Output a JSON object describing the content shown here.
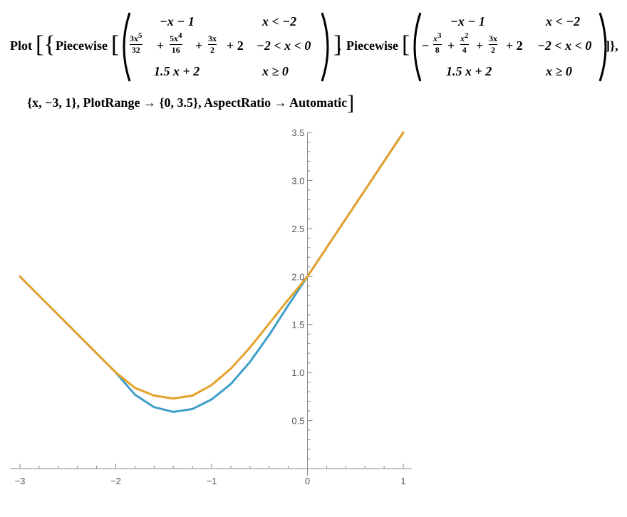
{
  "input": {
    "plot_open": "Plot",
    "piecewise_label": "Piecewise",
    "left_top_expr": "−x − 1",
    "left_top_cond": "x < −2",
    "f1_t1_num": "3x",
    "f1_t1_sup": "5",
    "f1_t1_den": "32",
    "f1_t2_num": "5x",
    "f1_t2_sup": "4",
    "f1_t2_den": "16",
    "f1_t3_num": "3x",
    "f1_t3_den": "2",
    "plus": "+",
    "plus2": "+ 2",
    "mid_cond": "−2 < x < 0",
    "bottom_expr": "1.5 x + 2",
    "bottom_cond": "x ≥ 0",
    "minus": "−",
    "f2_t1_num": "x",
    "f2_t1_sup": "3",
    "f2_t1_den": "8",
    "f2_t2_num": "x",
    "f2_t2_sup": "2",
    "f2_t2_den": "4",
    "f2_t3_num": "3x",
    "f2_t3_den": "2",
    "comma_close": "]},",
    "line2_text": "{x, −3, 1}, PlotRange → {0, 3.5}, AspectRatio → Automatic"
  },
  "chart_data": {
    "type": "line",
    "title": "",
    "xlabel": "",
    "ylabel": "",
    "xlim": [
      -3,
      1
    ],
    "ylim": [
      0,
      3.5
    ],
    "x_ticks": [
      "−3",
      "−2",
      "−1",
      "0",
      "1"
    ],
    "y_ticks": [
      "0.5",
      "1.0",
      "1.5",
      "2.0",
      "2.5",
      "3.0",
      "3.5"
    ],
    "series": [
      {
        "color": "#3f9ec9",
        "points": [
          [
            -3,
            2.0
          ],
          [
            -2.75,
            1.75
          ],
          [
            -2.5,
            1.5
          ],
          [
            -2.25,
            1.25
          ],
          [
            -2.0,
            1.0
          ],
          [
            -1.8,
            0.77
          ],
          [
            -1.6,
            0.64
          ],
          [
            -1.4,
            0.59
          ],
          [
            -1.2,
            0.62
          ],
          [
            -1.0,
            0.72
          ],
          [
            -0.8,
            0.88
          ],
          [
            -0.6,
            1.11
          ],
          [
            -0.4,
            1.39
          ],
          [
            -0.2,
            1.7
          ],
          [
            0,
            2.0
          ],
          [
            0.25,
            2.375
          ],
          [
            0.5,
            2.75
          ],
          [
            0.75,
            3.125
          ],
          [
            1.0,
            3.5
          ]
        ]
      },
      {
        "color": "#e5a22a",
        "points": [
          [
            -3,
            2.0
          ],
          [
            -2.75,
            1.75
          ],
          [
            -2.5,
            1.5
          ],
          [
            -2.25,
            1.25
          ],
          [
            -2.0,
            1.0
          ],
          [
            -1.8,
            0.84
          ],
          [
            -1.6,
            0.76
          ],
          [
            -1.4,
            0.73
          ],
          [
            -1.2,
            0.76
          ],
          [
            -1.0,
            0.87
          ],
          [
            -0.8,
            1.04
          ],
          [
            -0.6,
            1.26
          ],
          [
            -0.4,
            1.51
          ],
          [
            -0.2,
            1.76
          ],
          [
            0,
            2.0
          ],
          [
            0.25,
            2.375
          ],
          [
            0.5,
            2.75
          ],
          [
            0.75,
            3.125
          ],
          [
            1.0,
            3.5
          ]
        ]
      }
    ],
    "colors": {
      "axis": "#888888",
      "tick_label": "#555555"
    }
  }
}
